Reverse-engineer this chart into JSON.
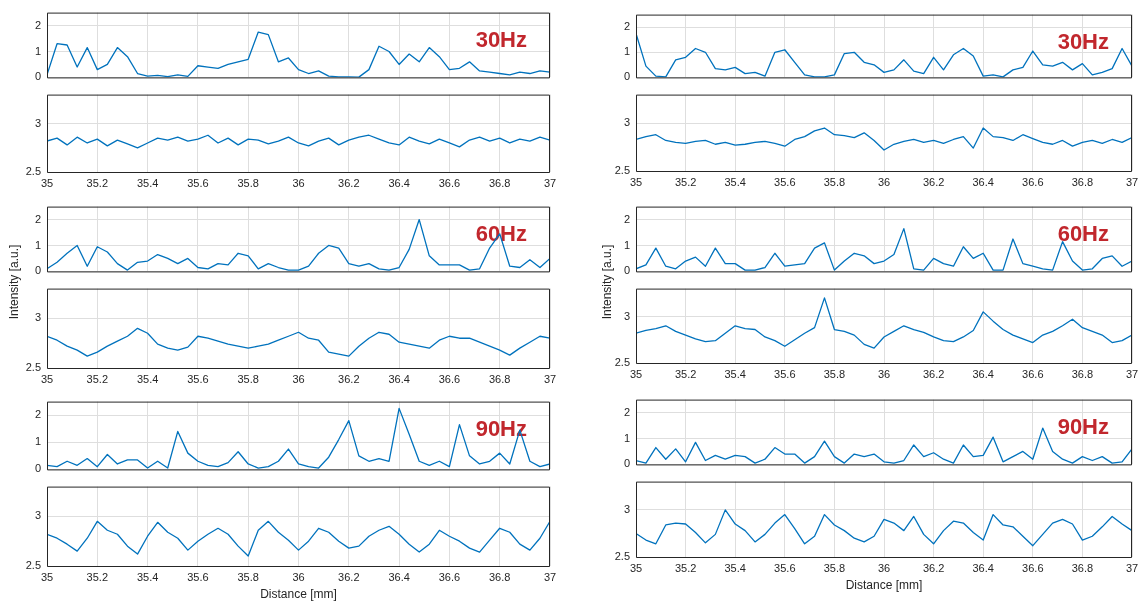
{
  "chart_data": [
    {
      "type": "line",
      "x": [
        35,
        35.04,
        35.08,
        35.12,
        35.16,
        35.2,
        35.24,
        35.28,
        35.32,
        35.36,
        35.4,
        35.44,
        35.48,
        35.52,
        35.56,
        35.6,
        35.64,
        35.68,
        35.72,
        35.76,
        35.8,
        35.84,
        35.88,
        35.92,
        35.96,
        36,
        36.04,
        36.08,
        36.12,
        36.16,
        36.2,
        36.24,
        36.28,
        36.32,
        36.36,
        36.4,
        36.44,
        36.48,
        36.52,
        36.56,
        36.6,
        36.64,
        36.68,
        36.72,
        36.76,
        36.8,
        36.84,
        36.88,
        36.92,
        36.96,
        37
      ],
      "values": [
        0.1,
        1.3,
        1.25,
        0.4,
        1.15,
        0.3,
        0.5,
        1.15,
        0.8,
        0.15,
        0.05,
        0.08,
        0.03,
        0.1,
        0.04,
        0.45,
        0.4,
        0.35,
        0.5,
        0.6,
        0.7,
        1.75,
        1.65,
        0.6,
        0.75,
        0.3,
        0.15,
        0.25,
        0.05,
        0.02,
        0.02,
        0.01,
        0.3,
        1.2,
        1.0,
        0.5,
        0.9,
        0.6,
        1.15,
        0.8,
        0.3,
        0.35,
        0.6,
        0.25,
        0.2,
        0.15,
        0.1,
        0.2,
        0.15,
        0.25,
        0.2
      ],
      "color": "#0072bd",
      "xlim": [
        35,
        37
      ],
      "xticks": [
        35,
        35.2,
        35.4,
        35.6,
        35.8,
        36,
        36.2,
        36.4,
        36.6,
        36.8,
        37
      ],
      "ylim": [
        0,
        2.5
      ],
      "yticks": [
        0,
        1,
        2
      ],
      "grid": true,
      "tick_labels": "y",
      "annotations": [
        "30Hz"
      ]
    },
    {
      "type": "line",
      "x": [
        35,
        35.04,
        35.08,
        35.12,
        35.16,
        35.2,
        35.24,
        35.28,
        35.32,
        35.36,
        35.4,
        35.44,
        35.48,
        35.52,
        35.56,
        35.6,
        35.64,
        35.68,
        35.72,
        35.76,
        35.8,
        35.84,
        35.88,
        35.92,
        35.96,
        36,
        36.04,
        36.08,
        36.12,
        36.16,
        36.2,
        36.24,
        36.28,
        36.32,
        36.36,
        36.4,
        36.44,
        36.48,
        36.52,
        36.56,
        36.6,
        36.64,
        36.68,
        36.72,
        36.76,
        36.8,
        36.84,
        36.88,
        36.92,
        36.96,
        37
      ],
      "values": [
        2.82,
        2.85,
        2.78,
        2.86,
        2.8,
        2.84,
        2.77,
        2.83,
        2.79,
        2.75,
        2.8,
        2.85,
        2.83,
        2.86,
        2.82,
        2.84,
        2.88,
        2.8,
        2.85,
        2.78,
        2.84,
        2.83,
        2.79,
        2.82,
        2.86,
        2.8,
        2.77,
        2.82,
        2.85,
        2.78,
        2.83,
        2.86,
        2.88,
        2.84,
        2.8,
        2.78,
        2.86,
        2.82,
        2.79,
        2.84,
        2.8,
        2.76,
        2.83,
        2.86,
        2.82,
        2.85,
        2.8,
        2.84,
        2.82,
        2.86,
        2.83
      ],
      "color": "#0072bd",
      "xlim": [
        35,
        37
      ],
      "xticks": [
        35,
        35.2,
        35.4,
        35.6,
        35.8,
        36,
        36.2,
        36.4,
        36.6,
        36.8,
        37
      ],
      "ylim": [
        2.5,
        3.3
      ],
      "yticks": [
        2.5,
        3
      ],
      "grid": true
    },
    {
      "type": "line",
      "x": [
        35,
        35.04,
        35.08,
        35.12,
        35.16,
        35.2,
        35.24,
        35.28,
        35.32,
        35.36,
        35.4,
        35.44,
        35.48,
        35.52,
        35.56,
        35.6,
        35.64,
        35.68,
        35.72,
        35.76,
        35.8,
        35.84,
        35.88,
        35.92,
        35.96,
        36,
        36.04,
        36.08,
        36.12,
        36.16,
        36.2,
        36.24,
        36.28,
        36.32,
        36.36,
        36.4,
        36.44,
        36.48,
        36.52,
        36.56,
        36.6,
        36.64,
        36.68,
        36.72,
        36.76,
        36.8,
        36.84,
        36.88,
        36.92,
        36.96,
        37
      ],
      "values": [
        1.75,
        0.45,
        0.05,
        0.02,
        0.7,
        0.8,
        1.15,
        1.0,
        0.35,
        0.3,
        0.4,
        0.15,
        0.2,
        0.05,
        1.0,
        1.1,
        0.6,
        0.1,
        0.02,
        0.02,
        0.1,
        0.95,
        1.0,
        0.6,
        0.5,
        0.2,
        0.3,
        0.7,
        0.25,
        0.15,
        0.8,
        0.3,
        0.9,
        1.15,
        0.85,
        0.05,
        0.1,
        0.02,
        0.3,
        0.4,
        1.05,
        0.5,
        0.45,
        0.6,
        0.3,
        0.55,
        0.1,
        0.2,
        0.35,
        1.15,
        0.45
      ],
      "color": "#0072bd",
      "xlim": [
        35,
        37
      ],
      "xticks": [
        35,
        35.2,
        35.4,
        35.6,
        35.8,
        36,
        36.2,
        36.4,
        36.6,
        36.8,
        37
      ],
      "ylim": [
        0,
        2.5
      ],
      "yticks": [
        0,
        1,
        2
      ],
      "grid": true,
      "tick_labels": "y",
      "annotations": [
        "30Hz"
      ]
    },
    {
      "type": "line",
      "x": [
        35,
        35.04,
        35.08,
        35.12,
        35.16,
        35.2,
        35.24,
        35.28,
        35.32,
        35.36,
        35.4,
        35.44,
        35.48,
        35.52,
        35.56,
        35.6,
        35.64,
        35.68,
        35.72,
        35.76,
        35.8,
        35.84,
        35.88,
        35.92,
        35.96,
        36,
        36.04,
        36.08,
        36.12,
        36.16,
        36.2,
        36.24,
        36.28,
        36.32,
        36.36,
        36.4,
        36.44,
        36.48,
        36.52,
        36.56,
        36.6,
        36.64,
        36.68,
        36.72,
        36.76,
        36.8,
        36.84,
        36.88,
        36.92,
        36.96,
        37
      ],
      "values": [
        2.83,
        2.86,
        2.88,
        2.82,
        2.8,
        2.79,
        2.81,
        2.82,
        2.78,
        2.8,
        2.77,
        2.78,
        2.8,
        2.81,
        2.79,
        2.76,
        2.83,
        2.86,
        2.92,
        2.95,
        2.88,
        2.87,
        2.85,
        2.9,
        2.82,
        2.72,
        2.78,
        2.81,
        2.83,
        2.8,
        2.82,
        2.79,
        2.83,
        2.86,
        2.74,
        2.95,
        2.86,
        2.85,
        2.82,
        2.88,
        2.84,
        2.8,
        2.78,
        2.82,
        2.76,
        2.8,
        2.82,
        2.79,
        2.83,
        2.8,
        2.85
      ],
      "color": "#0072bd",
      "xlim": [
        35,
        37
      ],
      "xticks": [
        35,
        35.2,
        35.4,
        35.6,
        35.8,
        36,
        36.2,
        36.4,
        36.6,
        36.8,
        37
      ],
      "ylim": [
        2.5,
        3.3
      ],
      "yticks": [
        2.5,
        3
      ],
      "grid": true
    },
    {
      "type": "line",
      "x": [
        35,
        35.04,
        35.08,
        35.12,
        35.16,
        35.2,
        35.24,
        35.28,
        35.32,
        35.36,
        35.4,
        35.44,
        35.48,
        35.52,
        35.56,
        35.6,
        35.64,
        35.68,
        35.72,
        35.76,
        35.8,
        35.84,
        35.88,
        35.92,
        35.96,
        36,
        36.04,
        36.08,
        36.12,
        36.16,
        36.2,
        36.24,
        36.28,
        36.32,
        36.36,
        36.4,
        36.44,
        36.48,
        36.52,
        36.56,
        36.6,
        36.64,
        36.68,
        36.72,
        36.76,
        36.8,
        36.84,
        36.88,
        36.92,
        36.96,
        37
      ],
      "values": [
        0.1,
        0.35,
        0.7,
        1.0,
        0.2,
        0.95,
        0.75,
        0.3,
        0.05,
        0.35,
        0.4,
        0.65,
        0.5,
        0.3,
        0.5,
        0.15,
        0.1,
        0.3,
        0.25,
        0.7,
        0.6,
        0.1,
        0.3,
        0.15,
        0.05,
        0.05,
        0.2,
        0.7,
        1.0,
        0.9,
        0.3,
        0.2,
        0.3,
        0.1,
        0.05,
        0.15,
        0.85,
        2.0,
        0.6,
        0.25,
        0.25,
        0.25,
        0.05,
        0.1,
        0.9,
        1.45,
        0.2,
        0.15,
        0.45,
        0.15,
        0.5
      ],
      "color": "#0072bd",
      "xlim": [
        35,
        37
      ],
      "xticks": [
        35,
        35.2,
        35.4,
        35.6,
        35.8,
        36,
        36.2,
        36.4,
        36.6,
        36.8,
        37
      ],
      "ylim": [
        0,
        2.5
      ],
      "yticks": [
        0,
        1,
        2
      ],
      "grid": true,
      "tick_labels": "y",
      "ylabel": "Intensity [a.u.]",
      "annotations": [
        "60Hz"
      ]
    },
    {
      "type": "line",
      "x": [
        35,
        35.04,
        35.08,
        35.12,
        35.16,
        35.2,
        35.24,
        35.28,
        35.32,
        35.36,
        35.4,
        35.44,
        35.48,
        35.52,
        35.56,
        35.6,
        35.64,
        35.68,
        35.72,
        35.76,
        35.8,
        35.84,
        35.88,
        35.92,
        35.96,
        36,
        36.04,
        36.08,
        36.12,
        36.16,
        36.2,
        36.24,
        36.28,
        36.32,
        36.36,
        36.4,
        36.44,
        36.48,
        36.52,
        36.56,
        36.6,
        36.64,
        36.68,
        36.72,
        36.76,
        36.8,
        36.84,
        36.88,
        36.92,
        36.96,
        37
      ],
      "values": [
        2.82,
        2.78,
        2.72,
        2.68,
        2.62,
        2.66,
        2.72,
        2.77,
        2.82,
        2.9,
        2.85,
        2.74,
        2.7,
        2.68,
        2.71,
        2.82,
        2.8,
        2.77,
        2.74,
        2.72,
        2.7,
        2.72,
        2.74,
        2.78,
        2.82,
        2.86,
        2.8,
        2.78,
        2.66,
        2.64,
        2.62,
        2.72,
        2.8,
        2.86,
        2.84,
        2.76,
        2.74,
        2.72,
        2.7,
        2.78,
        2.82,
        2.8,
        2.8,
        2.76,
        2.72,
        2.68,
        2.63,
        2.7,
        2.76,
        2.82,
        2.8
      ],
      "color": "#0072bd",
      "xlim": [
        35,
        37
      ],
      "xticks": [
        35,
        35.2,
        35.4,
        35.6,
        35.8,
        36,
        36.2,
        36.4,
        36.6,
        36.8,
        37
      ],
      "ylim": [
        2.5,
        3.3
      ],
      "yticks": [
        2.5,
        3
      ],
      "grid": true
    },
    {
      "type": "line",
      "x": [
        35,
        35.04,
        35.08,
        35.12,
        35.16,
        35.2,
        35.24,
        35.28,
        35.32,
        35.36,
        35.4,
        35.44,
        35.48,
        35.52,
        35.56,
        35.6,
        35.64,
        35.68,
        35.72,
        35.76,
        35.8,
        35.84,
        35.88,
        35.92,
        35.96,
        36,
        36.04,
        36.08,
        36.12,
        36.16,
        36.2,
        36.24,
        36.28,
        36.32,
        36.36,
        36.4,
        36.44,
        36.48,
        36.52,
        36.56,
        36.6,
        36.64,
        36.68,
        36.72,
        36.76,
        36.8,
        36.84,
        36.88,
        36.92,
        36.96,
        37
      ],
      "values": [
        0.1,
        0.25,
        0.9,
        0.2,
        0.1,
        0.4,
        0.55,
        0.2,
        0.9,
        0.3,
        0.3,
        0.05,
        0.05,
        0.15,
        0.7,
        0.2,
        0.25,
        0.3,
        0.9,
        1.1,
        0.05,
        0.4,
        0.7,
        0.6,
        0.3,
        0.4,
        0.65,
        1.65,
        0.1,
        0.05,
        0.5,
        0.3,
        0.2,
        0.95,
        0.5,
        0.7,
        0.05,
        0.05,
        1.25,
        0.3,
        0.2,
        0.1,
        0.05,
        1.15,
        0.4,
        0.05,
        0.1,
        0.5,
        0.6,
        0.2,
        0.4
      ],
      "color": "#0072bd",
      "xlim": [
        35,
        37
      ],
      "xticks": [
        35,
        35.2,
        35.4,
        35.6,
        35.8,
        36,
        36.2,
        36.4,
        36.6,
        36.8,
        37
      ],
      "ylim": [
        0,
        2.5
      ],
      "yticks": [
        0,
        1,
        2
      ],
      "grid": true,
      "tick_labels": "y",
      "ylabel": "Intensity [a.u.]",
      "annotations": [
        "60Hz"
      ]
    },
    {
      "type": "line",
      "x": [
        35,
        35.04,
        35.08,
        35.12,
        35.16,
        35.2,
        35.24,
        35.28,
        35.32,
        35.36,
        35.4,
        35.44,
        35.48,
        35.52,
        35.56,
        35.6,
        35.64,
        35.68,
        35.72,
        35.76,
        35.8,
        35.84,
        35.88,
        35.92,
        35.96,
        36,
        36.04,
        36.08,
        36.12,
        36.16,
        36.2,
        36.24,
        36.28,
        36.32,
        36.36,
        36.4,
        36.44,
        36.48,
        36.52,
        36.56,
        36.6,
        36.64,
        36.68,
        36.72,
        36.76,
        36.8,
        36.84,
        36.88,
        36.92,
        36.96,
        37
      ],
      "values": [
        2.82,
        2.85,
        2.87,
        2.9,
        2.84,
        2.8,
        2.76,
        2.73,
        2.74,
        2.82,
        2.9,
        2.87,
        2.86,
        2.78,
        2.74,
        2.68,
        2.75,
        2.82,
        2.88,
        3.2,
        2.86,
        2.84,
        2.8,
        2.7,
        2.66,
        2.78,
        2.84,
        2.9,
        2.86,
        2.83,
        2.78,
        2.74,
        2.73,
        2.78,
        2.85,
        3.05,
        2.95,
        2.86,
        2.8,
        2.76,
        2.72,
        2.8,
        2.84,
        2.9,
        2.97,
        2.88,
        2.84,
        2.8,
        2.72,
        2.74,
        2.8
      ],
      "color": "#0072bd",
      "xlim": [
        35,
        37
      ],
      "xticks": [
        35,
        35.2,
        35.4,
        35.6,
        35.8,
        36,
        36.2,
        36.4,
        36.6,
        36.8,
        37
      ],
      "ylim": [
        2.5,
        3.3
      ],
      "yticks": [
        2.5,
        3
      ],
      "grid": true
    },
    {
      "type": "line",
      "x": [
        35,
        35.04,
        35.08,
        35.12,
        35.16,
        35.2,
        35.24,
        35.28,
        35.32,
        35.36,
        35.4,
        35.44,
        35.48,
        35.52,
        35.56,
        35.6,
        35.64,
        35.68,
        35.72,
        35.76,
        35.8,
        35.84,
        35.88,
        35.92,
        35.96,
        36,
        36.04,
        36.08,
        36.12,
        36.16,
        36.2,
        36.24,
        36.28,
        36.32,
        36.36,
        36.4,
        36.44,
        36.48,
        36.52,
        36.56,
        36.6,
        36.64,
        36.68,
        36.72,
        36.76,
        36.8,
        36.84,
        36.88,
        36.92,
        36.96,
        37
      ],
      "values": [
        0.15,
        0.1,
        0.3,
        0.15,
        0.4,
        0.1,
        0.55,
        0.2,
        0.35,
        0.35,
        0.05,
        0.3,
        0.05,
        1.4,
        0.6,
        0.3,
        0.15,
        0.1,
        0.25,
        0.65,
        0.2,
        0.05,
        0.1,
        0.3,
        0.75,
        0.2,
        0.1,
        0.05,
        0.45,
        1.1,
        1.8,
        0.5,
        0.3,
        0.4,
        0.3,
        2.25,
        1.3,
        0.3,
        0.15,
        0.3,
        0.1,
        1.65,
        0.5,
        0.2,
        0.3,
        0.6,
        0.2,
        1.45,
        0.3,
        0.1,
        0.2
      ],
      "color": "#0072bd",
      "xlim": [
        35,
        37
      ],
      "xticks": [
        35,
        35.2,
        35.4,
        35.6,
        35.8,
        36,
        36.2,
        36.4,
        36.6,
        36.8,
        37
      ],
      "ylim": [
        0,
        2.5
      ],
      "yticks": [
        0,
        1,
        2
      ],
      "grid": true,
      "tick_labels": "y",
      "annotations": [
        "90Hz"
      ]
    },
    {
      "type": "line",
      "x": [
        35,
        35.04,
        35.08,
        35.12,
        35.16,
        35.2,
        35.24,
        35.28,
        35.32,
        35.36,
        35.4,
        35.44,
        35.48,
        35.52,
        35.56,
        35.6,
        35.64,
        35.68,
        35.72,
        35.76,
        35.8,
        35.84,
        35.88,
        35.92,
        35.96,
        36,
        36.04,
        36.08,
        36.12,
        36.16,
        36.2,
        36.24,
        36.28,
        36.32,
        36.36,
        36.4,
        36.44,
        36.48,
        36.52,
        36.56,
        36.6,
        36.64,
        36.68,
        36.72,
        36.76,
        36.8,
        36.84,
        36.88,
        36.92,
        36.96,
        37
      ],
      "values": [
        2.82,
        2.78,
        2.72,
        2.65,
        2.78,
        2.95,
        2.86,
        2.82,
        2.7,
        2.62,
        2.8,
        2.94,
        2.84,
        2.78,
        2.66,
        2.75,
        2.82,
        2.88,
        2.82,
        2.7,
        2.6,
        2.86,
        2.95,
        2.84,
        2.76,
        2.66,
        2.75,
        2.88,
        2.84,
        2.75,
        2.68,
        2.7,
        2.8,
        2.86,
        2.9,
        2.82,
        2.72,
        2.64,
        2.72,
        2.86,
        2.8,
        2.75,
        2.68,
        2.64,
        2.76,
        2.88,
        2.84,
        2.72,
        2.66,
        2.78,
        2.95
      ],
      "color": "#0072bd",
      "xlim": [
        35,
        37
      ],
      "xticks": [
        35,
        35.2,
        35.4,
        35.6,
        35.8,
        36,
        36.2,
        36.4,
        36.6,
        36.8,
        37
      ],
      "ylim": [
        2.5,
        3.3
      ],
      "yticks": [
        2.5,
        3
      ],
      "grid": true,
      "xlabel": "Distance [mm]"
    },
    {
      "type": "line",
      "x": [
        35,
        35.04,
        35.08,
        35.12,
        35.16,
        35.2,
        35.24,
        35.28,
        35.32,
        35.36,
        35.4,
        35.44,
        35.48,
        35.52,
        35.56,
        35.6,
        35.64,
        35.68,
        35.72,
        35.76,
        35.8,
        35.84,
        35.88,
        35.92,
        35.96,
        36,
        36.04,
        36.08,
        36.12,
        36.16,
        36.2,
        36.24,
        36.28,
        36.32,
        36.36,
        36.4,
        36.44,
        36.48,
        36.52,
        36.56,
        36.6,
        36.64,
        36.68,
        36.72,
        36.76,
        36.8,
        36.84,
        36.88,
        36.92,
        36.96,
        37
      ],
      "values": [
        0.15,
        0.05,
        0.65,
        0.2,
        0.6,
        0.1,
        0.85,
        0.15,
        0.35,
        0.2,
        0.35,
        0.3,
        0.05,
        0.2,
        0.65,
        0.4,
        0.4,
        0.05,
        0.3,
        0.9,
        0.3,
        0.05,
        0.4,
        0.3,
        0.4,
        0.1,
        0.05,
        0.15,
        0.75,
        0.3,
        0.45,
        0.2,
        0.05,
        0.75,
        0.3,
        0.35,
        1.05,
        0.1,
        0.3,
        0.5,
        0.2,
        1.4,
        0.5,
        0.2,
        0.05,
        0.3,
        0.15,
        0.3,
        0.05,
        0.1,
        0.6
      ],
      "color": "#0072bd",
      "xlim": [
        35,
        37
      ],
      "xticks": [
        35,
        35.2,
        35.4,
        35.6,
        35.8,
        36,
        36.2,
        36.4,
        36.6,
        36.8,
        37
      ],
      "ylim": [
        0,
        2.5
      ],
      "yticks": [
        0,
        1,
        2
      ],
      "grid": true,
      "tick_labels": "y",
      "annotations": [
        "90Hz"
      ]
    },
    {
      "type": "line",
      "x": [
        35,
        35.04,
        35.08,
        35.12,
        35.16,
        35.2,
        35.24,
        35.28,
        35.32,
        35.36,
        35.4,
        35.44,
        35.48,
        35.52,
        35.56,
        35.6,
        35.64,
        35.68,
        35.72,
        35.76,
        35.8,
        35.84,
        35.88,
        35.92,
        35.96,
        36,
        36.04,
        36.08,
        36.12,
        36.16,
        36.2,
        36.24,
        36.28,
        36.32,
        36.36,
        36.4,
        36.44,
        36.48,
        36.52,
        36.56,
        36.6,
        36.64,
        36.68,
        36.72,
        36.76,
        36.8,
        36.84,
        36.88,
        36.92,
        36.96,
        37
      ],
      "values": [
        2.75,
        2.68,
        2.64,
        2.84,
        2.86,
        2.85,
        2.76,
        2.65,
        2.74,
        3.0,
        2.85,
        2.78,
        2.66,
        2.74,
        2.86,
        2.95,
        2.8,
        2.64,
        2.72,
        2.95,
        2.84,
        2.78,
        2.7,
        2.66,
        2.72,
        2.9,
        2.86,
        2.78,
        2.93,
        2.74,
        2.64,
        2.78,
        2.88,
        2.86,
        2.76,
        2.68,
        2.95,
        2.84,
        2.82,
        2.72,
        2.62,
        2.74,
        2.86,
        2.9,
        2.85,
        2.68,
        2.72,
        2.82,
        2.93,
        2.85,
        2.78
      ],
      "color": "#0072bd",
      "xlim": [
        35,
        37
      ],
      "xticks": [
        35,
        35.2,
        35.4,
        35.6,
        35.8,
        36,
        36.2,
        36.4,
        36.6,
        36.8,
        37
      ],
      "ylim": [
        2.5,
        3.3
      ],
      "yticks": [
        2.5,
        3
      ],
      "grid": true,
      "xlabel": "Distance [mm]"
    }
  ]
}
